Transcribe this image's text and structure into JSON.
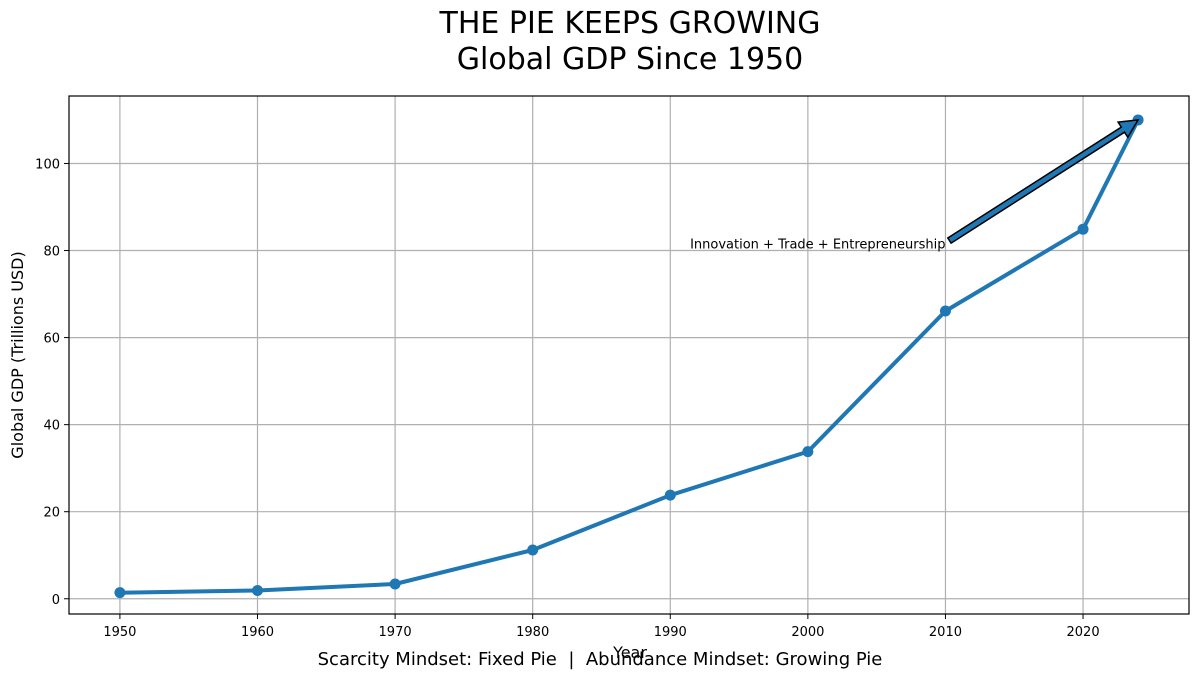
{
  "chart_data": {
    "type": "line",
    "title": "THE PIE KEEPS GROWING",
    "subtitle": "Global GDP Since 1950",
    "xlabel": "Year",
    "ylabel": "Global GDP (Trillions USD)",
    "xlim": [
      1946.3,
      2027.7
    ],
    "ylim": [
      -3.5,
      115.5
    ],
    "xticks": [
      1950,
      1960,
      1970,
      1980,
      1990,
      2000,
      2010,
      2020
    ],
    "yticks": [
      0,
      20,
      40,
      60,
      80,
      100
    ],
    "grid": true,
    "series": [
      {
        "x": [
          1950,
          1960,
          1970,
          1980,
          1990,
          2000,
          2010,
          2020,
          2024
        ],
        "y": [
          1.4,
          1.9,
          3.4,
          11.2,
          23.8,
          33.8,
          66.1,
          84.9,
          110.0
        ],
        "color": "#1f77b4",
        "marker": "circle"
      }
    ],
    "annotations": [
      {
        "text": "Innovation + Trade + Entrepreneurship",
        "text_at": [
          2010,
          80
        ],
        "arrow_to": [
          2024,
          110
        ],
        "arrow_color": "#1f77b4"
      }
    ],
    "caption": "Scarcity Mindset: Fixed Pie  |  Abundance Mindset: Growing Pie"
  }
}
